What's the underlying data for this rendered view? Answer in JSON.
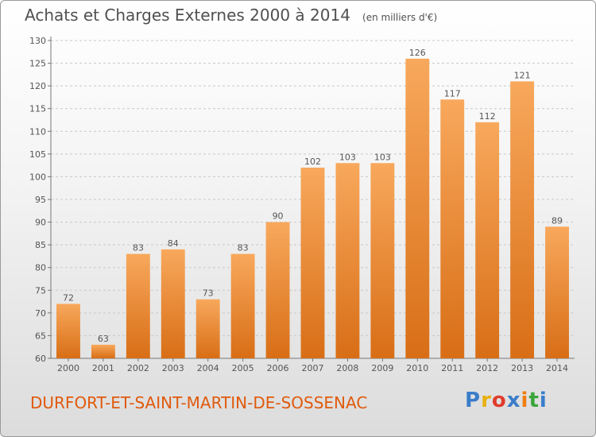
{
  "header": {
    "title": "Achats et Charges Externes 2000 à 2014",
    "unit": "(en milliers d'€)"
  },
  "commune": "DURFORT-ET-SAINT-MARTIN-DE-SOSSENAC",
  "logo": {
    "text": "Proxiti",
    "colors": [
      "#3a7dc9",
      "#e8b010",
      "#e03c2c",
      "#3a7dc9",
      "#f07d0e",
      "#3aa63a",
      "#3a7dc9"
    ]
  },
  "colors": {
    "bar_light": "#f8a85c",
    "bar_dark": "#d86e16",
    "commune_text": "#e05a0c"
  },
  "chart_data": {
    "type": "bar",
    "categories": [
      "2000",
      "2001",
      "2002",
      "2003",
      "2004",
      "2005",
      "2006",
      "2007",
      "2008",
      "2009",
      "2010",
      "2011",
      "2012",
      "2013",
      "2014"
    ],
    "values": [
      72,
      63,
      83,
      84,
      73,
      83,
      90,
      102,
      103,
      103,
      126,
      117,
      112,
      121,
      89
    ],
    "yticks": [
      60,
      65,
      70,
      75,
      80,
      85,
      90,
      95,
      100,
      105,
      110,
      115,
      120,
      125,
      130
    ],
    "ylim": [
      60,
      130
    ],
    "grid": true,
    "legend": "none"
  }
}
